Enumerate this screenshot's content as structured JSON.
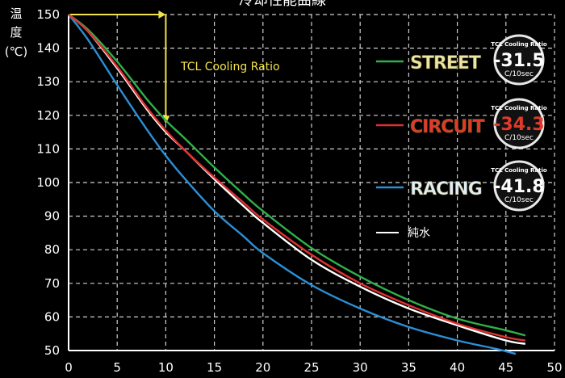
{
  "chart_data": {
    "type": "line",
    "title": "冷却性能曲線",
    "ylabel_lines": [
      "温",
      "度",
      "(℃)"
    ],
    "xlim": [
      0,
      50
    ],
    "ylim": [
      50,
      150
    ],
    "x_ticks": [
      0,
      5,
      10,
      15,
      20,
      25,
      30,
      35,
      40,
      45,
      50
    ],
    "y_ticks": [
      50,
      60,
      70,
      80,
      90,
      100,
      110,
      120,
      130,
      140,
      150
    ],
    "grid": true,
    "annotation": "TCL Cooling Ratio",
    "badge_title": "TCL Cooling Ratio",
    "badge_unit": "C/10sec",
    "series": [
      {
        "name": "STREET",
        "color": "#2fb04a",
        "label_color": "#ece6a6",
        "badge_value": "-31.5",
        "x": [
          0,
          2,
          5,
          8,
          10,
          12,
          15,
          18,
          20,
          25,
          30,
          35,
          40,
          45,
          47
        ],
        "y": [
          150,
          145.5,
          136,
          125,
          118.5,
          113,
          104.5,
          96.5,
          91.5,
          80.5,
          72,
          65,
          59.5,
          56,
          54.5
        ]
      },
      {
        "name": "CIRCUIT",
        "color": "#e03030",
        "label_color": "#e23a2a",
        "badge_value": "-34.3",
        "x": [
          0,
          2,
          5,
          8,
          10,
          12,
          15,
          18,
          20,
          25,
          30,
          35,
          40,
          45,
          47
        ],
        "y": [
          150,
          145,
          134.5,
          122.5,
          115.5,
          109.5,
          101.5,
          94,
          89,
          78.5,
          70,
          63.5,
          58,
          54,
          53
        ]
      },
      {
        "name": "RACING",
        "color": "#2b8fd6",
        "label_color": "#dfeef8",
        "badge_value": "-41.8",
        "x": [
          0,
          2,
          5,
          8,
          10,
          12,
          15,
          18,
          20,
          25,
          30,
          35,
          40,
          44,
          46
        ],
        "y": [
          150,
          142.5,
          129,
          116,
          108,
          101,
          91.5,
          84,
          79,
          69.5,
          62.5,
          57,
          53,
          50.5,
          49
        ]
      },
      {
        "name": "純水",
        "color": "#ffffff",
        "label_color": "#ffffff",
        "badge_value": "",
        "x": [
          0,
          2,
          5,
          8,
          10,
          12,
          15,
          18,
          20,
          25,
          30,
          35,
          40,
          45,
          47
        ],
        "y": [
          150,
          145,
          134,
          122,
          115,
          109.5,
          101,
          93,
          88,
          77,
          69,
          62.5,
          57.5,
          53,
          52
        ]
      }
    ]
  }
}
